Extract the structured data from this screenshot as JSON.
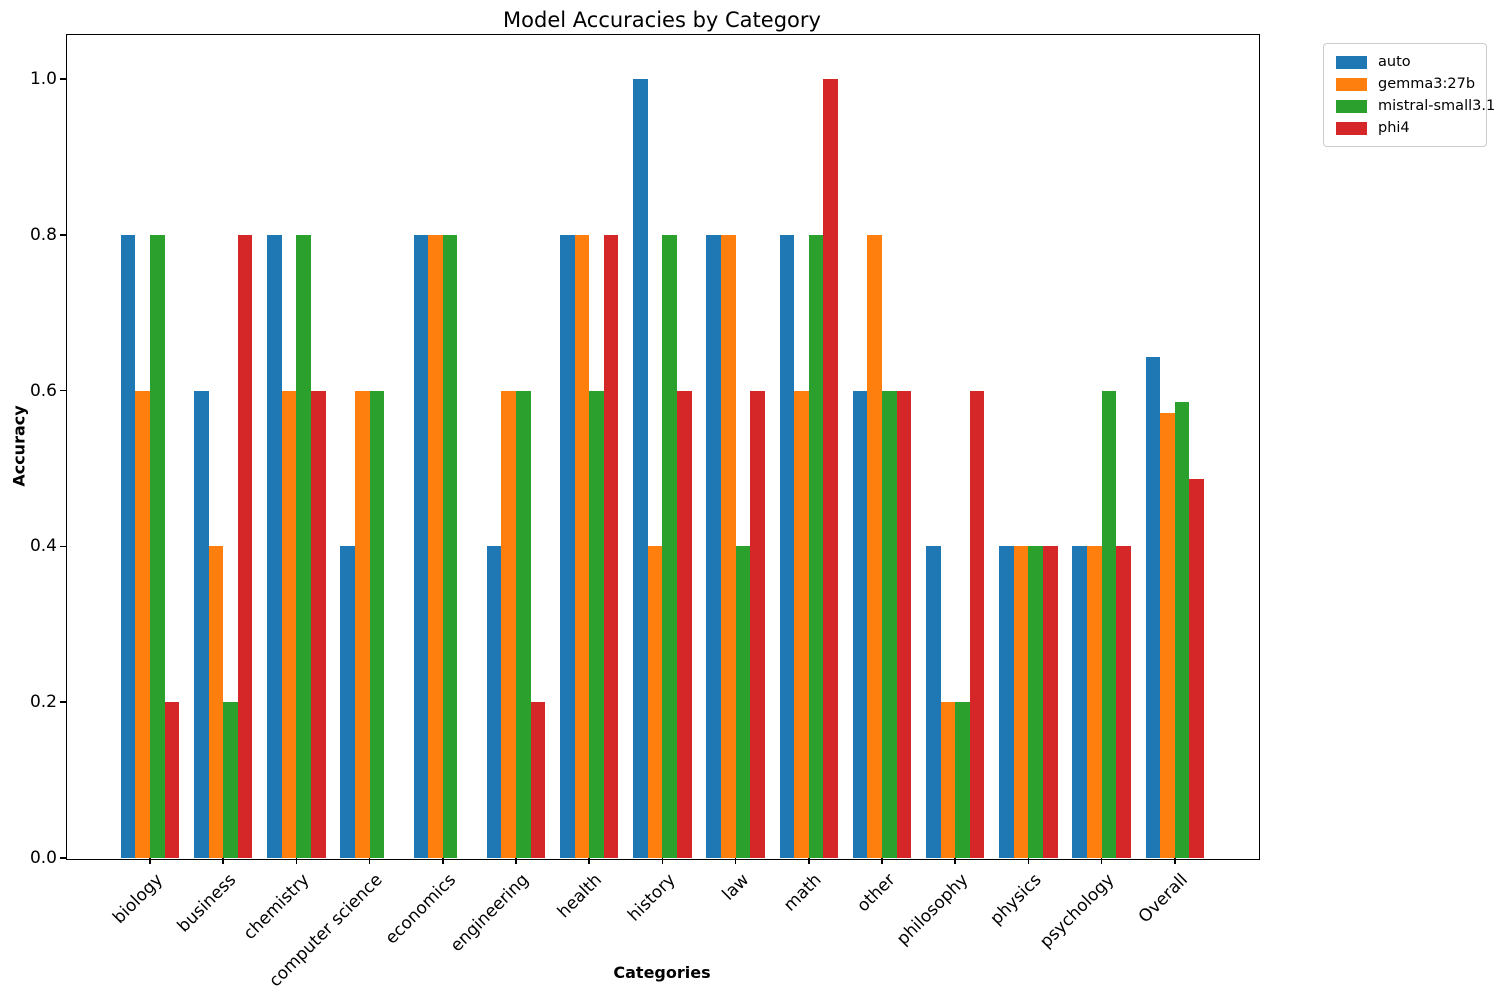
{
  "chart_data": {
    "type": "bar",
    "title": "Model Accuracies by Category",
    "xlabel": "Categories",
    "ylabel": "Accuracy",
    "ylim": [
      0,
      1.05
    ],
    "yticks": [
      0.0,
      0.2,
      0.4,
      0.6,
      0.8,
      1.0
    ],
    "grid": false,
    "legend_position": "upper right, outside plot area",
    "categories": [
      "biology",
      "business",
      "chemistry",
      "computer science",
      "economics",
      "engineering",
      "health",
      "history",
      "law",
      "math",
      "other",
      "philosophy",
      "physics",
      "psychology",
      "Overall"
    ],
    "series": [
      {
        "name": "auto",
        "color": "#1f77b4",
        "values": [
          0.8,
          0.6,
          0.8,
          0.4,
          0.8,
          0.4,
          0.8,
          1.0,
          0.8,
          0.8,
          0.6,
          0.4,
          0.4,
          0.4,
          0.643
        ]
      },
      {
        "name": "gemma3:27b",
        "color": "#ff7f0e",
        "values": [
          0.6,
          0.4,
          0.6,
          0.6,
          0.8,
          0.6,
          0.8,
          0.4,
          0.8,
          0.6,
          0.8,
          0.2,
          0.4,
          0.4,
          0.571
        ]
      },
      {
        "name": "mistral-small3.1",
        "color": "#2ca02c",
        "values": [
          0.8,
          0.2,
          0.8,
          0.6,
          0.8,
          0.6,
          0.6,
          0.8,
          0.4,
          0.8,
          0.6,
          0.2,
          0.4,
          0.6,
          0.586
        ]
      },
      {
        "name": "phi4",
        "color": "#d62728",
        "values": [
          0.2,
          0.8,
          0.6,
          0.0,
          0.0,
          0.2,
          0.8,
          0.6,
          0.6,
          1.0,
          0.6,
          0.6,
          0.4,
          0.4,
          0.486
        ]
      }
    ]
  }
}
